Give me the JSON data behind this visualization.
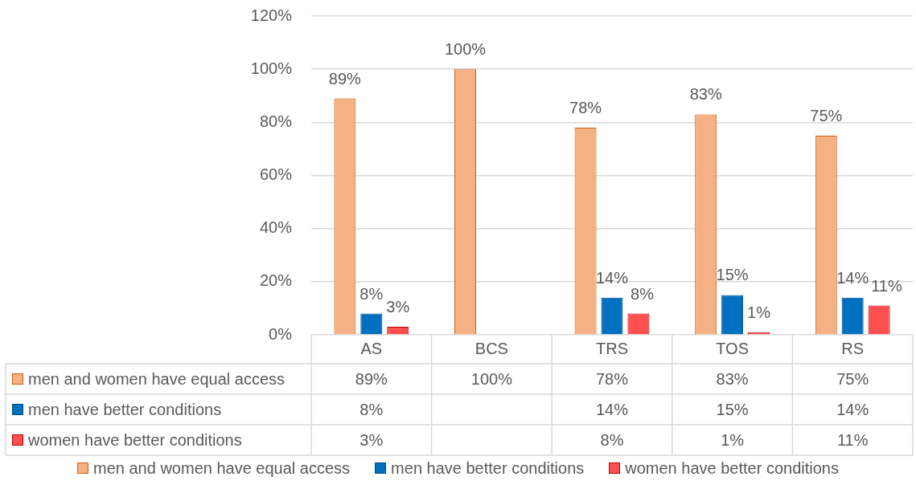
{
  "chart_data": {
    "type": "bar",
    "categories": [
      "AS",
      "BCS",
      "TRS",
      "TOS",
      "RS"
    ],
    "series": [
      {
        "name": "men and women have equal access",
        "color": "#f4b183",
        "values": [
          89,
          100,
          78,
          83,
          75
        ],
        "value_labels": [
          "89%",
          "100%",
          "78%",
          "83%",
          "75%"
        ]
      },
      {
        "name": "men have better conditions",
        "color": "#0070c0",
        "values": [
          8,
          null,
          14,
          15,
          14
        ],
        "value_labels": [
          "8%",
          null,
          "14%",
          "15%",
          "14%"
        ]
      },
      {
        "name": "women have better conditions",
        "color": "#ff5050",
        "values": [
          3,
          null,
          8,
          1,
          11
        ],
        "value_labels": [
          "3%",
          null,
          "8%",
          "1%",
          "11%"
        ]
      }
    ],
    "ylim": [
      0,
      120
    ],
    "yticks": [
      {
        "value": 0,
        "label": "0%"
      },
      {
        "value": 20,
        "label": "20%"
      },
      {
        "value": 40,
        "label": "40%"
      },
      {
        "value": 60,
        "label": "60%"
      },
      {
        "value": 80,
        "label": "80%"
      },
      {
        "value": 100,
        "label": "100%"
      },
      {
        "value": 120,
        "label": "120%"
      }
    ],
    "grid": "y",
    "legend": "bottom"
  }
}
